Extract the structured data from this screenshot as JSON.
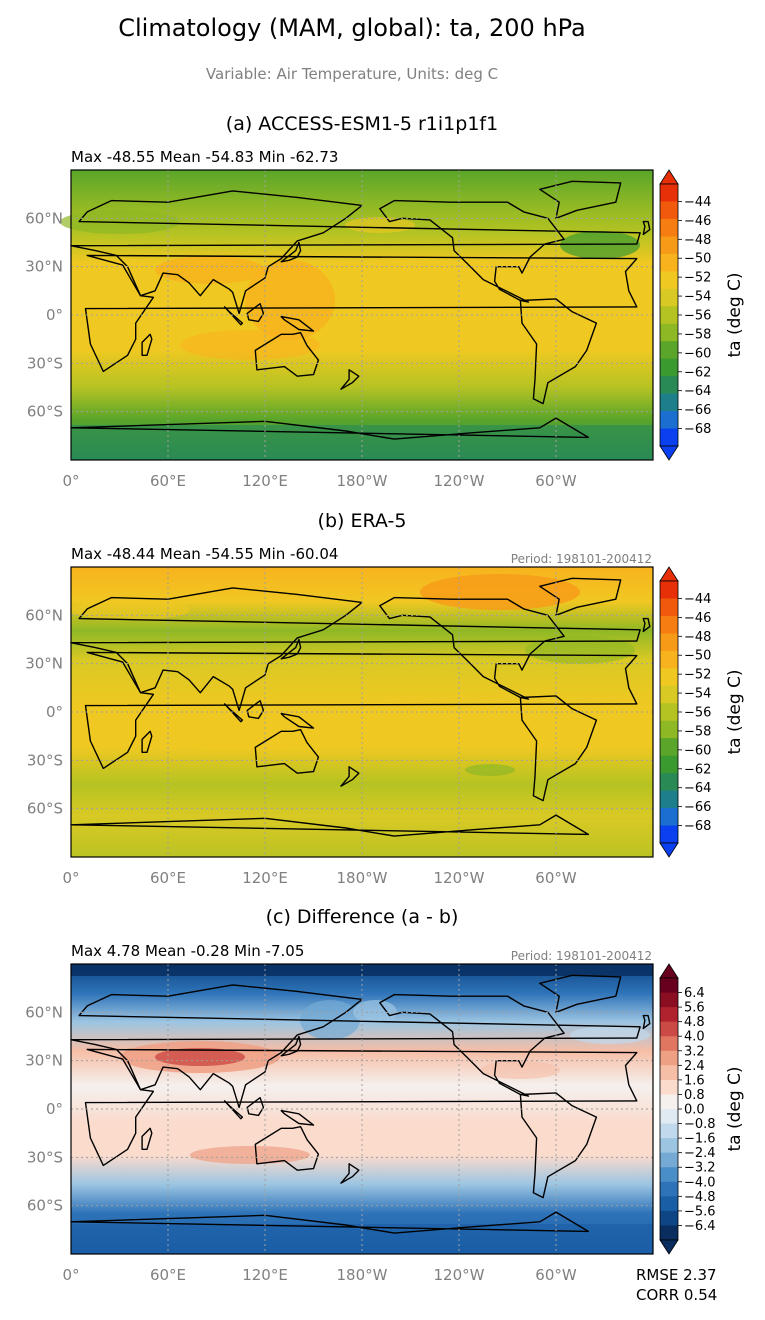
{
  "figure": {
    "title": "Climatology (MAM, global): ta, 200 hPa",
    "subtitle": "Variable: Air Temperature, Units: deg C"
  },
  "axes": {
    "lon_ticks": [
      "0°",
      "60°E",
      "120°E",
      "180°W",
      "120°W",
      "60°W"
    ],
    "lon_values": [
      0,
      60,
      120,
      180,
      240,
      300
    ],
    "lat_ticks": [
      "60°N",
      "30°N",
      "0°",
      "30°S",
      "60°S"
    ],
    "lat_values": [
      60,
      30,
      0,
      -30,
      -60
    ]
  },
  "panels": [
    {
      "title": "(a) ACCESS-ESM1-5 r1i1p1f1",
      "stats": "Max -48.55 Mean -54.83 Min -62.73",
      "period": "",
      "colorbar": {
        "label": "ta (deg C)",
        "ticks": [
          "−44",
          "−46",
          "−48",
          "−50",
          "−52",
          "−54",
          "−56",
          "−58",
          "−60",
          "−62",
          "−64",
          "−66",
          "−68"
        ]
      }
    },
    {
      "title": "(b) ERA-5",
      "stats": "Max -48.44 Mean -54.55 Min -60.04",
      "period": "Period: 198101-200412",
      "colorbar": {
        "label": "ta (deg C)",
        "ticks": [
          "−44",
          "−46",
          "−48",
          "−50",
          "−52",
          "−54",
          "−56",
          "−58",
          "−60",
          "−62",
          "−64",
          "−66",
          "−68"
        ]
      }
    },
    {
      "title": "(c) Difference (a - b)",
      "stats": "Max 4.78 Mean -0.28 Min -7.05",
      "period": "Period: 198101-200412",
      "colorbar": {
        "label": "ta (deg C)",
        "ticks": [
          "6.4",
          "5.6",
          "4.8",
          "4.0",
          "3.2",
          "2.4",
          "1.6",
          "0.8",
          "0.0",
          "−0.8",
          "−1.6",
          "−2.4",
          "−3.2",
          "−4.0",
          "−4.8",
          "−5.6",
          "−6.4"
        ]
      },
      "metrics": {
        "rmse": "RMSE 2.37",
        "corr": "CORR 0.54"
      }
    }
  ],
  "colors": {
    "abs_scale": [
      "#0b40f0",
      "#1a6fd0",
      "#1d7f8a",
      "#2a8a55",
      "#3b9a2f",
      "#5aa52a",
      "#8fb825",
      "#b5c322",
      "#d9c924",
      "#f0c822",
      "#f8b21e",
      "#f79a18",
      "#f57d12",
      "#f15a0d",
      "#e83008"
    ],
    "abs_min_color": "#0b40f0",
    "abs_max_color": "#e83008",
    "diff_scale": [
      "#082d5e",
      "#0e4585",
      "#1a5ea6",
      "#2e73b8",
      "#4a8ec7",
      "#74aad4",
      "#9cc5e2",
      "#c1d9ec",
      "#dfeaf3",
      "#f5f0ee",
      "#fadbcc",
      "#f6bea6",
      "#eea085",
      "#e07560",
      "#cc4a45",
      "#b0232e",
      "#8a0d22",
      "#67001f"
    ],
    "land_outline": "#000000",
    "grid": "#a0a0a0"
  }
}
